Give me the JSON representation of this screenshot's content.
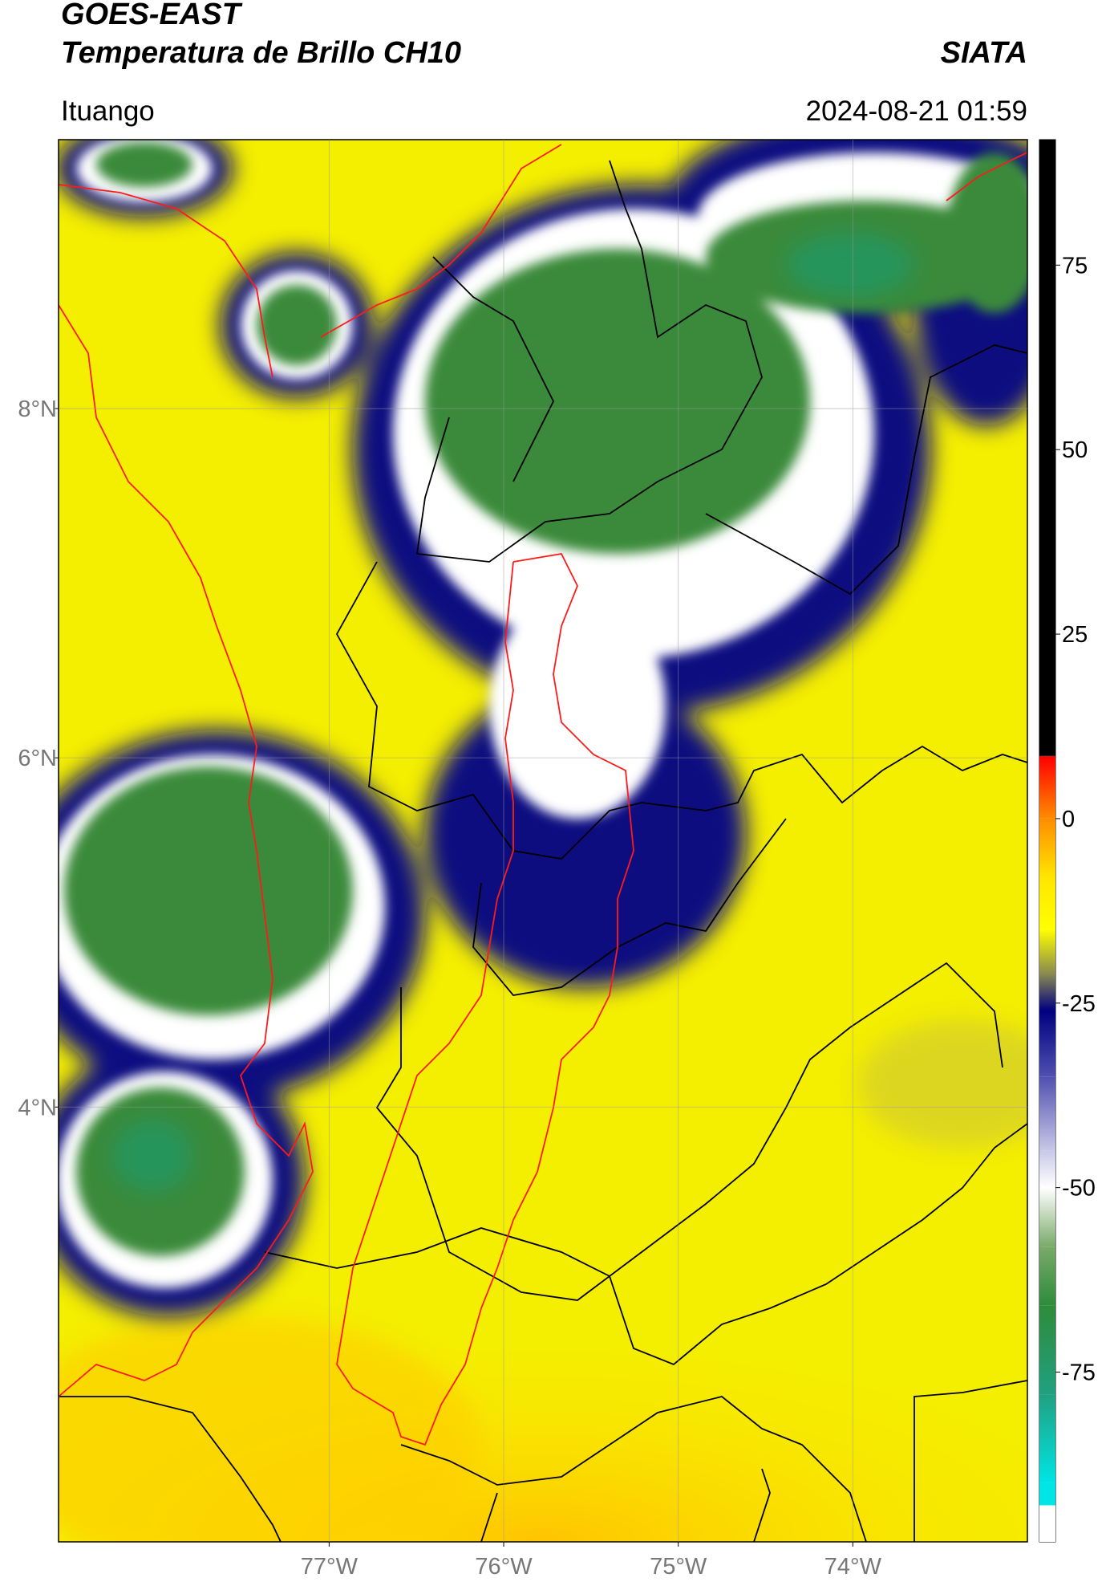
{
  "header": {
    "title": "GOES-EAST",
    "subtitle": "Temperatura de Brillo CH10",
    "source": "SIATA",
    "location": "Ituango",
    "datetime": "2024-08-21 01:59"
  },
  "chart_data": {
    "type": "map",
    "xlim": [
      -78.55,
      -73.0
    ],
    "ylim": [
      1.51,
      9.54
    ],
    "xticks": [
      {
        "value": -77,
        "label": "77°W"
      },
      {
        "value": -76,
        "label": "76°W"
      },
      {
        "value": -75,
        "label": "75°W"
      },
      {
        "value": -74,
        "label": "74°W"
      }
    ],
    "yticks": [
      {
        "value": 8,
        "label": "8°N"
      },
      {
        "value": 6,
        "label": "6°N"
      },
      {
        "value": 4,
        "label": "4°N"
      }
    ],
    "grid": true,
    "colorbar": {
      "lim": [
        -98,
        92
      ],
      "ticks": [
        75,
        50,
        25,
        0,
        -25,
        -50,
        -75
      ],
      "colormap": [
        [
          92,
          "#000000"
        ],
        [
          8.5,
          "#000000"
        ],
        [
          8.4,
          "#ff0000"
        ],
        [
          0,
          "#ff8c00"
        ],
        [
          -8,
          "#ffe600"
        ],
        [
          -15,
          "#ffff00"
        ],
        [
          -21,
          "#8a8a50"
        ],
        [
          -26,
          "#000080"
        ],
        [
          -35,
          "#5050b0"
        ],
        [
          -45,
          "#c8c8e8"
        ],
        [
          -50,
          "#ffffff"
        ],
        [
          -58,
          "#7aaa6a"
        ],
        [
          -66,
          "#2e8b3a"
        ],
        [
          -78,
          "#20a080"
        ],
        [
          -90,
          "#00e5e5"
        ],
        [
          -93,
          "#00e5e5"
        ],
        [
          -93.1,
          "#ffffff"
        ],
        [
          -98,
          "#ffffff"
        ]
      ]
    }
  }
}
